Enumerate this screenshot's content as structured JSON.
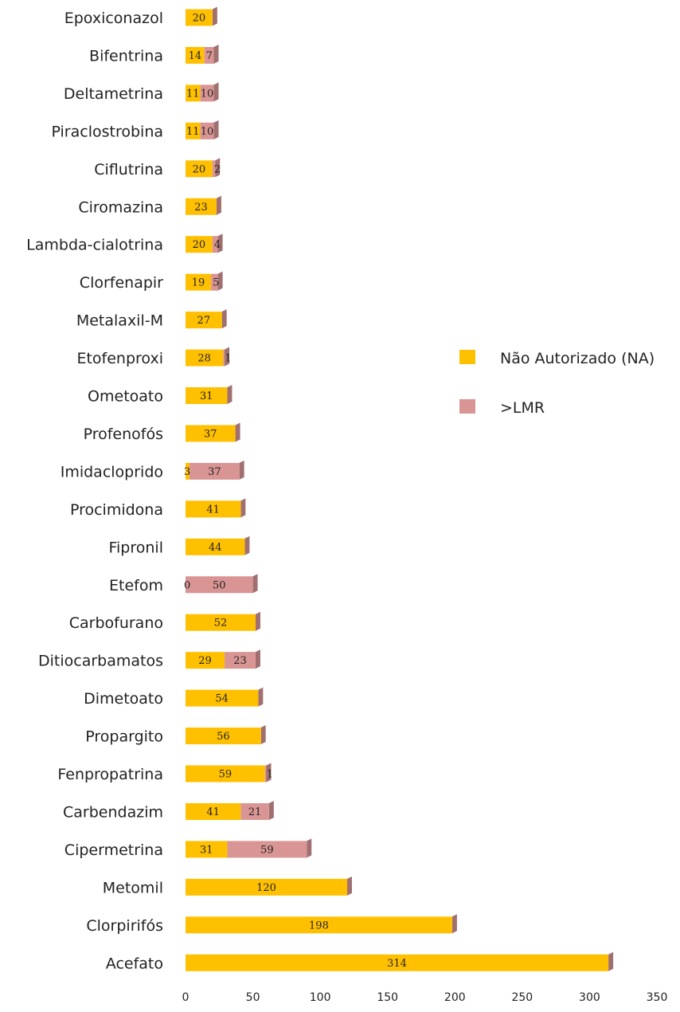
{
  "chart_data": {
    "type": "bar",
    "orientation": "horizontal",
    "stacked": true,
    "categories": [
      "Epoxiconazol",
      "Bifentrina",
      "Deltametrina",
      "Piraclostrobina",
      "Ciflutrina",
      "Ciromazina",
      "Lambda-cialotrina",
      "Clorfenapir",
      "Metalaxil-M",
      "Etofenproxi",
      "Ometoato",
      "Profenofós",
      "Imidacloprido",
      "Procimidona",
      "Fipronil",
      "Etefom",
      "Carbofurano",
      "Ditiocarbamatos",
      "Dimetoato",
      "Propargito",
      "Fenpropatrina",
      "Carbendazim",
      "Cipermetrina",
      "Metomil",
      "Clorpirifós",
      "Acefato"
    ],
    "series": [
      {
        "name": "Não Autorizado (NA)",
        "color": "#FFC000",
        "values": [
          20,
          14,
          11,
          11,
          20,
          23,
          20,
          19,
          27,
          28,
          31,
          37,
          3,
          41,
          44,
          0,
          52,
          29,
          54,
          56,
          59,
          41,
          31,
          120,
          198,
          314
        ]
      },
      {
        "name": ">LMR",
        "color": "#D99594",
        "values": [
          null,
          7,
          10,
          10,
          2,
          null,
          4,
          5,
          null,
          1,
          null,
          null,
          37,
          null,
          null,
          50,
          null,
          23,
          null,
          null,
          1,
          21,
          59,
          null,
          null,
          null
        ]
      }
    ],
    "xlim": [
      0,
      350
    ],
    "xticks": [
      0,
      50,
      100,
      150,
      200,
      250,
      300,
      350
    ],
    "grid": false,
    "legend_position": "right"
  }
}
